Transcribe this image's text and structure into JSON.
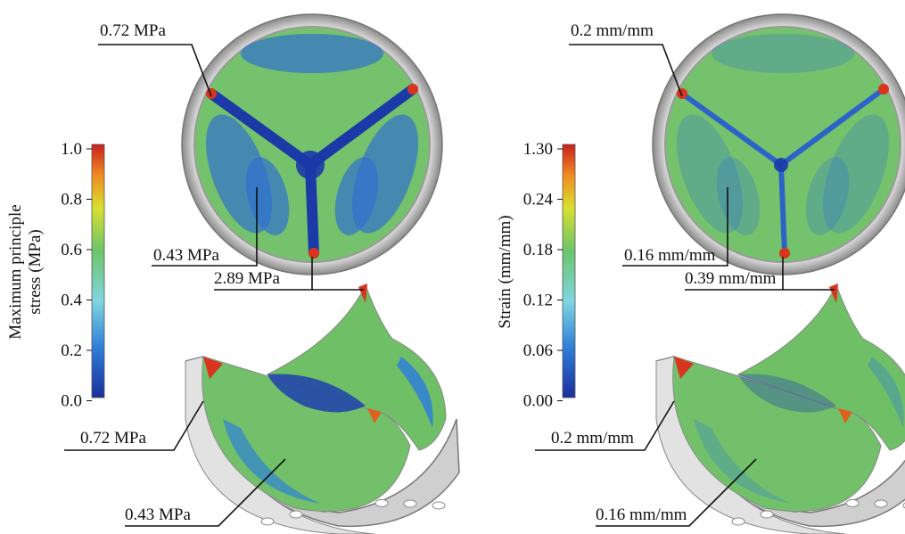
{
  "panels": [
    {
      "colorbar": {
        "label": [
          "Maximum principle",
          "stress (MPa)"
        ],
        "ticks": [
          "1.0",
          "0.8",
          "0.6",
          "0.4",
          "0.2",
          "0.0"
        ]
      },
      "annotations": [
        "0.72 MPa",
        "0.43 MPa",
        "2.89 MPa",
        "0.72 MPa",
        "0.43 MPa"
      ]
    },
    {
      "colorbar": {
        "label": [
          "Strain (mm/mm)"
        ],
        "ticks": [
          "1.30",
          "0.24",
          "0.18",
          "0.12",
          "0.06",
          "0.00"
        ]
      },
      "annotations": [
        "0.2 mm/mm",
        "0.16 mm/mm",
        "0.39 mm/mm",
        "0.2 mm/mm",
        "0.16 mm/mm"
      ]
    }
  ]
}
